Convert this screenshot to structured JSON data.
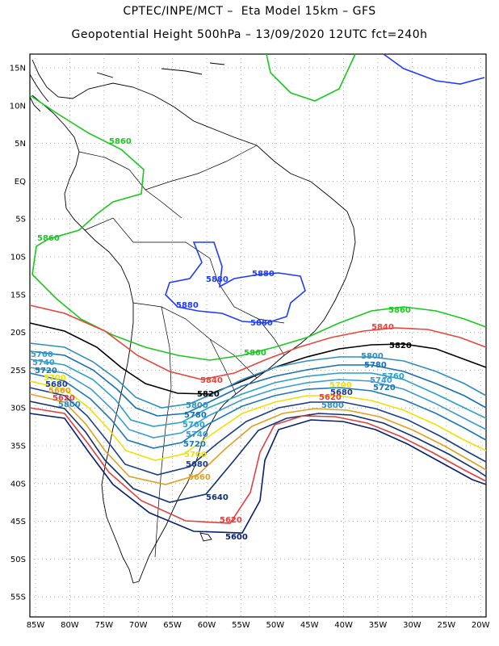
{
  "header": {
    "title_line1": "CPTEC/INPE/MCT –  Eta Model 15km – GFS",
    "title_line2": "Geopotential Height 500hPa – 13/09/2020 12UTC fct=240h"
  },
  "axes": {
    "lat_labels": [
      "15N",
      "10N",
      "5N",
      "EQ",
      "5S",
      "10S",
      "15S",
      "20S",
      "25S",
      "30S",
      "35S",
      "40S",
      "45S",
      "50S",
      "55S"
    ],
    "lon_labels": [
      "85W",
      "80W",
      "75W",
      "70W",
      "65W",
      "60W",
      "55W",
      "50W",
      "45W",
      "40W",
      "35W",
      "30W",
      "25W",
      "20W"
    ]
  },
  "colors": {
    "c5880": "#1e3cff",
    "c5860": "#19c81e",
    "c5840": "#e8443c",
    "c5820": "#000000",
    "c5800": "#2f8fbf",
    "c5780": "#1a6fb0",
    "c5760": "#2aa0c8",
    "c5740": "#3c9ad2",
    "c5720": "#1c78b4",
    "c5700": "#f0e000",
    "c5680": "#1a3c8c",
    "c5660": "#e0a020",
    "c5620": "#e04040",
    "c5600": "#0a1e6e",
    "c5640": "#103070",
    "coast": "#000000"
  },
  "contours": {
    "label_5880": "5880",
    "label_5860": "5860",
    "label_5840": "5840",
    "label_5820": "5820",
    "label_5800": "5800",
    "label_5780": "5780",
    "label_5760": "5760",
    "label_5740": "5740",
    "label_5720": "5720",
    "label_5700": "5700",
    "label_5680": "5680",
    "label_5660": "5660",
    "label_5640": "5640",
    "label_5620": "5620",
    "label_5600": "5600"
  }
}
